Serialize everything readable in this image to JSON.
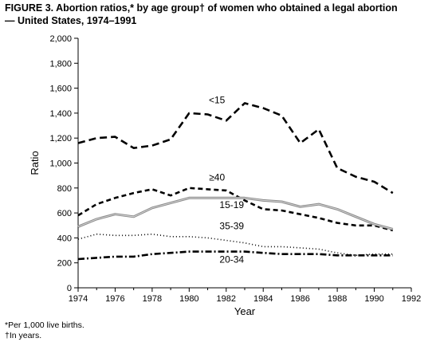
{
  "figure": {
    "title_lines": [
      "FIGURE 3. Abortion ratios,* by age group† of women who obtained a legal abortion",
      "— United States, 1974–1991"
    ],
    "footnotes": [
      "*Per 1,000 live births.",
      "†In years."
    ]
  },
  "chart_data": {
    "type": "line",
    "title": "FIGURE 3. Abortion ratios,* by age group† of women who obtained a legal abortion — United States, 1974–1991",
    "xlabel": "Year",
    "ylabel": "Ratio",
    "xlim": [
      1974,
      1992
    ],
    "ylim": [
      0,
      2000
    ],
    "x_ticks": [
      1974,
      1976,
      1978,
      1980,
      1982,
      1984,
      1986,
      1988,
      1990,
      1992
    ],
    "y_ticks": [
      0,
      200,
      400,
      600,
      800,
      1000,
      1200,
      1400,
      1600,
      1800,
      2000
    ],
    "x_tick_labels": [
      "1974",
      "1976",
      "1978",
      "1980",
      "1982",
      "1984",
      "1986",
      "1988",
      "1990",
      "1992"
    ],
    "y_tick_labels": [
      "0",
      "200",
      "400",
      "600",
      "800",
      "1,000",
      "1,200",
      "1,400",
      "1,600",
      "1,800",
      "2,000"
    ],
    "grid": false,
    "x": [
      1974,
      1975,
      1976,
      1977,
      1978,
      1979,
      1980,
      1981,
      1982,
      1983,
      1984,
      1985,
      1986,
      1987,
      1988,
      1989,
      1990,
      1991
    ],
    "series": [
      {
        "name": "<15",
        "style": "long-dash",
        "color": "#000000",
        "values": [
          1160,
          1200,
          1210,
          1120,
          1140,
          1190,
          1400,
          1390,
          1340,
          1480,
          1440,
          1380,
          1160,
          1270,
          960,
          890,
          850,
          760
        ]
      },
      {
        "name": "≥40",
        "style": "dash",
        "color": "#000000",
        "values": [
          580,
          670,
          720,
          760,
          790,
          740,
          800,
          790,
          780,
          700,
          630,
          620,
          590,
          560,
          520,
          500,
          500,
          460
        ]
      },
      {
        "name": "15-19",
        "style": "double-gray",
        "color": "#8a8a8a",
        "values": [
          490,
          550,
          590,
          570,
          640,
          680,
          720,
          720,
          720,
          720,
          700,
          690,
          650,
          670,
          630,
          570,
          510,
          470
        ]
      },
      {
        "name": "35-39",
        "style": "dot",
        "color": "#000000",
        "values": [
          390,
          430,
          420,
          420,
          430,
          410,
          410,
          400,
          380,
          360,
          330,
          330,
          320,
          310,
          280,
          260,
          270,
          270
        ]
      },
      {
        "name": "20-34",
        "style": "dash-dot",
        "color": "#000000",
        "values": [
          230,
          240,
          250,
          250,
          270,
          280,
          290,
          290,
          290,
          290,
          280,
          270,
          270,
          270,
          260,
          260,
          260,
          260
        ]
      }
    ]
  }
}
